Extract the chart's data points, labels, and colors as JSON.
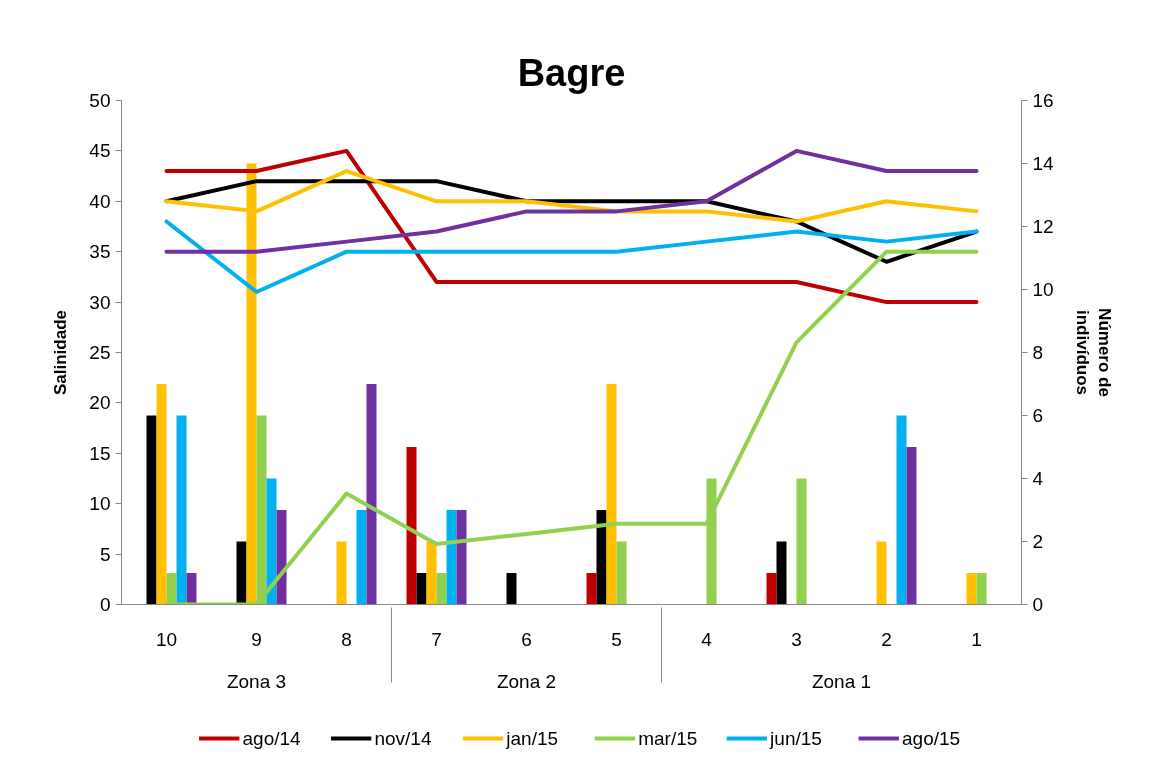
{
  "chart_data": {
    "type": "bar",
    "title": "Bagre",
    "ylabel": "Salinidade",
    "y2label": "Número de indivíduos",
    "categories": [
      "10",
      "9",
      "8",
      "7",
      "6",
      "5",
      "4",
      "3",
      "2",
      "1"
    ],
    "annotations": [
      "Zona 3",
      "Zona 2",
      "Zona 1"
    ],
    "ylim": [
      0,
      50
    ],
    "yticks": [
      0,
      5,
      10,
      15,
      20,
      25,
      30,
      35,
      40,
      45,
      50
    ],
    "y2lim": [
      0,
      16
    ],
    "y2ticks": [
      0,
      2,
      4,
      6,
      8,
      10,
      12,
      14,
      16
    ],
    "legend": "bottom",
    "series": [
      {
        "axis": "y2",
        "color": "#c00000",
        "values": [
          null,
          null,
          null,
          5,
          null,
          1,
          null,
          1,
          null,
          null
        ]
      },
      {
        "axis": "y2",
        "color": "#000000",
        "values": [
          6,
          2,
          null,
          1,
          1,
          3,
          null,
          2,
          null,
          null
        ]
      },
      {
        "axis": "y2",
        "color": "#ffc000",
        "values": [
          7,
          14,
          2,
          2,
          null,
          7,
          null,
          null,
          2,
          1
        ]
      },
      {
        "axis": "y2",
        "color": "#92d050",
        "values": [
          1,
          6,
          null,
          1,
          null,
          2,
          4,
          4,
          null,
          1
        ]
      },
      {
        "axis": "y2",
        "color": "#00b0f0",
        "values": [
          6,
          4,
          3,
          3,
          null,
          null,
          null,
          null,
          6,
          null
        ]
      },
      {
        "axis": "y2",
        "color": "#7030a0",
        "values": [
          1,
          3,
          7,
          3,
          null,
          null,
          null,
          null,
          5,
          null
        ]
      },
      {
        "type": "line",
        "name": "ago/14",
        "color": "#c00000",
        "values": [
          43,
          43,
          45,
          32,
          32,
          32,
          32,
          32,
          30,
          30
        ]
      },
      {
        "type": "line",
        "name": "nov/14",
        "color": "#000000",
        "values": [
          40,
          42,
          42,
          42,
          40,
          40,
          40,
          38,
          34,
          37
        ]
      },
      {
        "type": "line",
        "name": "jan/15",
        "color": "#ffc000",
        "values": [
          40,
          39,
          43,
          40,
          40,
          39,
          39,
          38,
          40,
          39
        ]
      },
      {
        "type": "line",
        "name": "mar/15",
        "color": "#92d050",
        "values": [
          0,
          0,
          11,
          6,
          7,
          8,
          8,
          26,
          35,
          35
        ]
      },
      {
        "type": "line",
        "name": "jun/15",
        "color": "#00b0f0",
        "values": [
          38,
          31,
          35,
          35,
          35,
          35,
          36,
          37,
          36,
          37
        ]
      },
      {
        "type": "line",
        "name": "ago/15",
        "color": "#7030a0",
        "values": [
          35,
          35,
          36,
          37,
          39,
          39,
          40,
          45,
          43,
          43
        ]
      }
    ]
  }
}
